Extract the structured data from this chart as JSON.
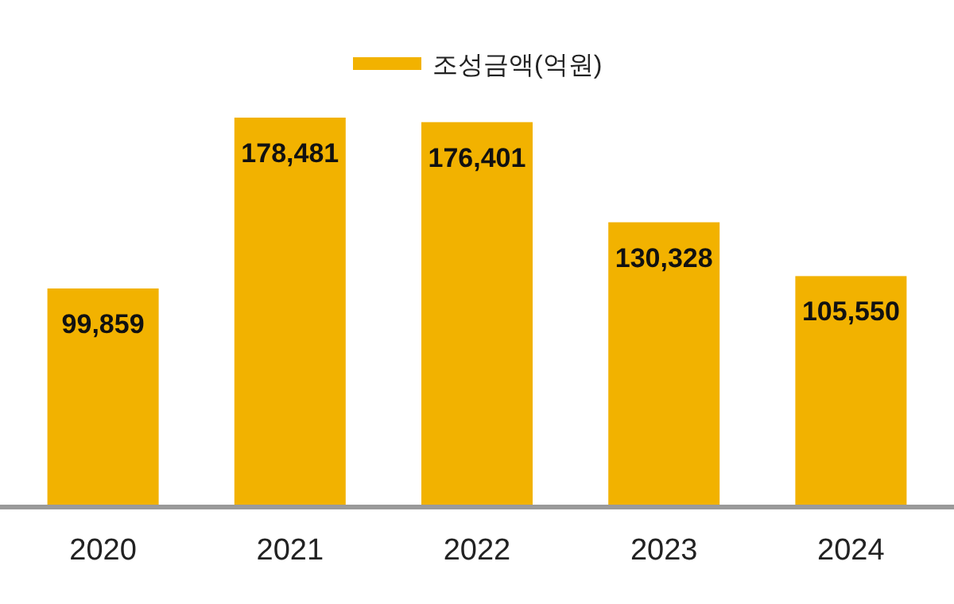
{
  "chart_data": {
    "type": "bar",
    "categories": [
      "2020",
      "2021",
      "2022",
      "2023",
      "2024"
    ],
    "series": [
      {
        "name": "조성금액(억원)",
        "color": "#f2b200",
        "values": [
          99859,
          178481,
          176401,
          130328,
          105550
        ],
        "value_labels": [
          "99,859",
          "178,481",
          "176,401",
          "130,328",
          "105,550"
        ]
      }
    ],
    "legend": "top"
  }
}
